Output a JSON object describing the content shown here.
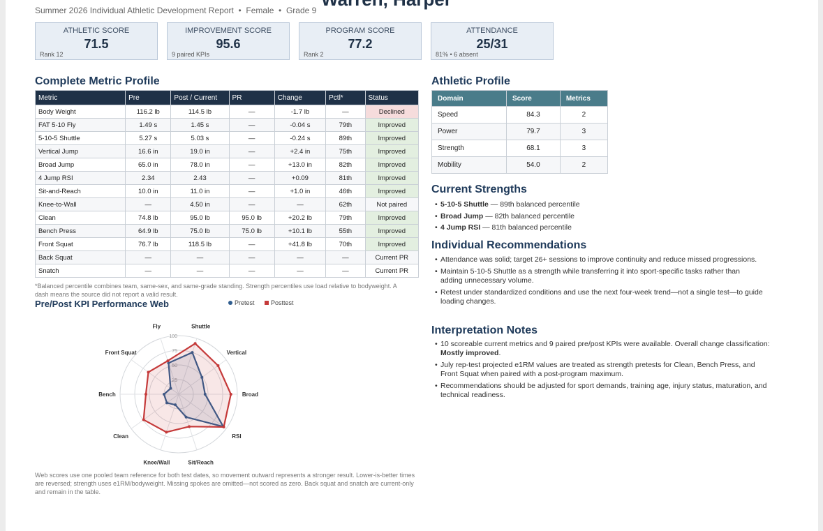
{
  "header": {
    "name": "Warren, Harper",
    "report": "Summer 2026 Individual Athletic Development Report",
    "sex": "Female",
    "grade": "Grade 9"
  },
  "cards": [
    {
      "label": "ATHLETIC SCORE",
      "value": "71.5",
      "note": "Rank 12"
    },
    {
      "label": "IMPROVEMENT SCORE",
      "value": "95.6",
      "note": "9 paired KPIs"
    },
    {
      "label": "PROGRAM SCORE",
      "value": "77.2",
      "note": "Rank 2"
    },
    {
      "label": "ATTENDANCE",
      "value": "25/31",
      "note": "81% • 6 absent"
    }
  ],
  "metric_profile": {
    "title": "Complete Metric Profile",
    "headers": [
      "Metric",
      "Pre",
      "Post / Current",
      "PR",
      "Change",
      "Pctl*",
      "Status"
    ],
    "rows": [
      [
        "Body Weight",
        "116.2 lb",
        "114.5 lb",
        "—",
        "-1.7 lb",
        "—",
        "Declined"
      ],
      [
        "FAT 5-10 Fly",
        "1.49 s",
        "1.45 s",
        "—",
        "-0.04 s",
        "79th",
        "Improved"
      ],
      [
        "5-10-5 Shuttle",
        "5.27 s",
        "5.03 s",
        "—",
        "-0.24 s",
        "89th",
        "Improved"
      ],
      [
        "Vertical Jump",
        "16.6 in",
        "19.0 in",
        "—",
        "+2.4 in",
        "75th",
        "Improved"
      ],
      [
        "Broad Jump",
        "65.0 in",
        "78.0 in",
        "—",
        "+13.0 in",
        "82th",
        "Improved"
      ],
      [
        "4 Jump RSI",
        "2.34",
        "2.43",
        "—",
        "+0.09",
        "81th",
        "Improved"
      ],
      [
        "Sit-and-Reach",
        "10.0 in",
        "11.0 in",
        "—",
        "+1.0 in",
        "46th",
        "Improved"
      ],
      [
        "Knee-to-Wall",
        "—",
        "4.50 in",
        "—",
        "—",
        "62th",
        "Not paired"
      ],
      [
        "Clean",
        "74.8 lb",
        "95.0 lb",
        "95.0 lb",
        "+20.2 lb",
        "79th",
        "Improved"
      ],
      [
        "Bench Press",
        "64.9 lb",
        "75.0 lb",
        "75.0 lb",
        "+10.1 lb",
        "55th",
        "Improved"
      ],
      [
        "Front Squat",
        "76.7 lb",
        "118.5 lb",
        "—",
        "+41.8 lb",
        "70th",
        "Improved"
      ],
      [
        "Back Squat",
        "—",
        "—",
        "—",
        "—",
        "—",
        "Current PR"
      ],
      [
        "Snatch",
        "—",
        "—",
        "—",
        "—",
        "—",
        "Current PR"
      ]
    ],
    "status_fill": {
      "Declined": "#f6dcdc",
      "Improved": "#e3efe0"
    },
    "footnote": "*Balanced percentile combines team, same-sex, and same-grade standing. Strength percentiles use load relative to bodyweight. A dash means the source did not report a valid result."
  },
  "athletic_profile": {
    "title": "Athletic Profile",
    "headers": [
      "Domain",
      "Score",
      "Metrics"
    ],
    "rows": [
      [
        "Speed",
        "84.3",
        "2"
      ],
      [
        "Power",
        "79.7",
        "3"
      ],
      [
        "Strength",
        "68.1",
        "3"
      ],
      [
        "Mobility",
        "54.0",
        "2"
      ]
    ]
  },
  "strengths": {
    "title": "Current Strengths",
    "items": [
      {
        "name": "5-10-5 Shuttle",
        "text": "— 89th balanced percentile"
      },
      {
        "name": "Broad Jump",
        "text": "— 82th balanced percentile"
      },
      {
        "name": "4 Jump RSI",
        "text": "— 81th balanced percentile"
      }
    ]
  },
  "recommendations": {
    "title": "Individual Recommendations",
    "items": [
      "Attendance was solid; target 26+ sessions to improve continuity and reduce missed progressions.",
      "Maintain 5-10-5 Shuttle as a strength while transferring it into sport-specific tasks rather than adding unnecessary volume.",
      "Retest under standardized conditions and use the next four-week trend—not a single test—to guide loading changes."
    ]
  },
  "interpretation": {
    "title": "Interpretation Notes",
    "items": [
      {
        "text": "10 scoreable current metrics and 9 paired pre/post KPIs were available. Overall change classification:",
        "bold": "Mostly improved",
        "after": "."
      },
      {
        "text": "July rep-test projected e1RM values are treated as strength pretests for Clean, Bench Press, and Front Squat when paired with a post-program maximum."
      },
      {
        "text": "Recommendations should be adjusted for sport demands, training age, injury status, maturation, and technical readiness."
      }
    ]
  },
  "chart_data": {
    "type": "radar",
    "title": "Pre/Post KPI Performance Web",
    "categories": [
      "Fly",
      "Shuttle",
      "Vertical",
      "Broad",
      "RSI",
      "Sit/Reach",
      "Knee/Wall",
      "Clean",
      "Bench",
      "Front Squat"
    ],
    "series": [
      {
        "name": "Pretest",
        "color": "#2f5d8f",
        "values": [
          56,
          75,
          49,
          45,
          94,
          41,
          19,
          25,
          25,
          17
        ]
      },
      {
        "name": "Posttest",
        "color": "#c53a3a",
        "values": [
          60,
          91,
          83,
          89,
          95,
          58,
          68,
          74,
          56,
          64
        ]
      }
    ],
    "rlim": [
      0,
      100
    ],
    "rticks": [
      25,
      50,
      75,
      100
    ],
    "legend": "top-right",
    "note": "Web scores use one pooled team reference for both test dates, so movement outward represents a stronger result. Lower-is-better times are reversed; strength uses e1RM/bodyweight. Missing spokes are omitted—not scored as zero. Back squat and snatch are current-only and remain in the table."
  }
}
